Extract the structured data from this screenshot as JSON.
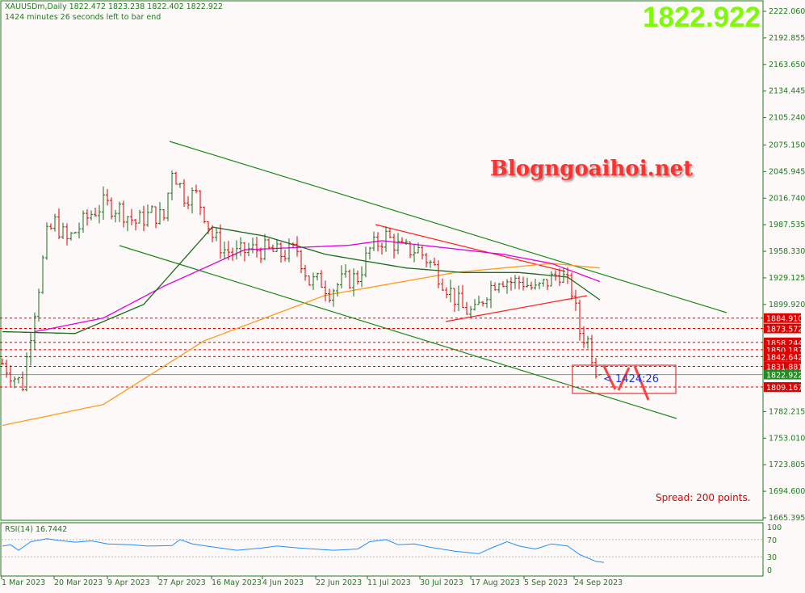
{
  "header": {
    "symbol_line": "XAUUSDm,Daily  1822.472 1823.238 1822.402 1822.922",
    "timer_line": "1424 minutes 26 seconds left to bar end"
  },
  "big_price": "1822.922",
  "watermark": "Blogngoaihoi.net",
  "spread": "Spread: 200 points.",
  "countdown": "< 1424:26",
  "colors": {
    "bull": "#1a6b1a",
    "bear": "#e00000",
    "ma_fast": "#1a6b1a",
    "ma_mid": "#e000e0",
    "ma_slow": "#ff9a1a",
    "channel": "#1a8a1a",
    "triangle": "#ff2020",
    "level": "#e00000",
    "rsi": "#1e90ff",
    "bid_label": "#228b22"
  },
  "chart_data": [
    {
      "type": "ohlc",
      "title": "XAUUSDm,Daily",
      "ylim": [
        1665.395,
        2222.06
      ],
      "y_ticks": [
        "2222.060",
        "2192.855",
        "2163.650",
        "2134.445",
        "2105.240",
        "2075.150",
        "2045.945",
        "2016.740",
        "1987.535",
        "1958.330",
        "1929.125",
        "1899.920",
        "1782.215",
        "1753.010",
        "1723.805",
        "1694.600",
        "1665.395"
      ],
      "x_ticks": [
        "1 Mar 2023",
        "20 Mar 2023",
        "9 Apr 2023",
        "27 Apr 2023",
        "16 May 2023",
        "4 Jun 2023",
        "22 Jun 2023",
        "11 Jul 2023",
        "30 Jul 2023",
        "17 Aug 2023",
        "5 Sep 2023",
        "24 Sep 2023"
      ],
      "last": {
        "open": 1822.472,
        "high": 1823.238,
        "low": 1822.402,
        "close": 1822.922
      },
      "close_path_bar_price": [
        [
          0,
          1835
        ],
        [
          3,
          1820
        ],
        [
          5,
          1812
        ],
        [
          7,
          1870
        ],
        [
          9,
          1920
        ],
        [
          11,
          1975
        ],
        [
          13,
          1990
        ],
        [
          16,
          1970
        ],
        [
          19,
          1985
        ],
        [
          22,
          2000
        ],
        [
          25,
          2010
        ],
        [
          29,
          2005
        ],
        [
          33,
          1990
        ],
        [
          37,
          2000
        ],
        [
          40,
          1995
        ],
        [
          42,
          2050
        ],
        [
          45,
          2020
        ],
        [
          48,
          2020
        ],
        [
          50,
          2000
        ],
        [
          52,
          1975
        ],
        [
          55,
          1960
        ],
        [
          58,
          1955
        ],
        [
          61,
          1960
        ],
        [
          65,
          1960
        ],
        [
          69,
          1955
        ],
        [
          73,
          1960
        ],
        [
          76,
          1925
        ],
        [
          79,
          1925
        ],
        [
          81,
          1915
        ],
        [
          84,
          1925
        ],
        [
          88,
          1930
        ],
        [
          91,
          1960
        ],
        [
          95,
          1975
        ],
        [
          99,
          1960
        ],
        [
          103,
          1960
        ],
        [
          107,
          1940
        ],
        [
          110,
          1920
        ],
        [
          114,
          1895
        ],
        [
          117,
          1890
        ],
        [
          120,
          1915
        ],
        [
          123,
          1930
        ],
        [
          126,
          1925
        ],
        [
          129,
          1925
        ],
        [
          132,
          1915
        ],
        [
          135,
          1925
        ],
        [
          138,
          1935
        ],
        [
          141,
          1915
        ],
        [
          143,
          1870
        ],
        [
          145,
          1860
        ],
        [
          147,
          1830
        ],
        [
          148,
          1822.922
        ]
      ],
      "ma_fast": [
        [
          0,
          1870
        ],
        [
          18,
          1868
        ],
        [
          35,
          1900
        ],
        [
          52,
          1985
        ],
        [
          65,
          1975
        ],
        [
          80,
          1955
        ],
        [
          100,
          1940
        ],
        [
          114,
          1935
        ],
        [
          128,
          1935
        ],
        [
          140,
          1930
        ],
        [
          148,
          1905
        ]
      ],
      "ma_mid": [
        [
          8,
          1870
        ],
        [
          25,
          1885
        ],
        [
          40,
          1920
        ],
        [
          60,
          1960
        ],
        [
          86,
          1965
        ],
        [
          94,
          1970
        ],
        [
          124,
          1955
        ],
        [
          136,
          1945
        ],
        [
          148,
          1925
        ]
      ],
      "ma_slow": [
        [
          0,
          1767
        ],
        [
          25,
          1790
        ],
        [
          50,
          1860
        ],
        [
          80,
          1910
        ],
        [
          112,
          1935
        ],
        [
          136,
          1945
        ],
        [
          148,
          1940
        ]
      ],
      "levels": [
        "1884.910",
        "1873.572",
        "1858.244",
        "1850.187",
        "1842.642",
        "1831.881",
        "1809.167"
      ],
      "bid": "1822.922"
    },
    {
      "type": "line",
      "title": "RSI(14) 16.7442",
      "ylim": [
        0,
        100
      ],
      "y_ticks": [
        "100",
        "70",
        "30",
        "0"
      ],
      "levels": [
        70,
        30
      ],
      "values_bar": [
        [
          0,
          55
        ],
        [
          2,
          58
        ],
        [
          4,
          45
        ],
        [
          7,
          65
        ],
        [
          11,
          72
        ],
        [
          14,
          68
        ],
        [
          18,
          64
        ],
        [
          22,
          67
        ],
        [
          26,
          60
        ],
        [
          32,
          58
        ],
        [
          36,
          55
        ],
        [
          42,
          56
        ],
        [
          44,
          70
        ],
        [
          47,
          60
        ],
        [
          52,
          53
        ],
        [
          58,
          45
        ],
        [
          64,
          50
        ],
        [
          68,
          55
        ],
        [
          74,
          50
        ],
        [
          82,
          45
        ],
        [
          88,
          48
        ],
        [
          91,
          65
        ],
        [
          95,
          70
        ],
        [
          98,
          58
        ],
        [
          102,
          60
        ],
        [
          106,
          52
        ],
        [
          112,
          43
        ],
        [
          118,
          37
        ],
        [
          121,
          50
        ],
        [
          125,
          65
        ],
        [
          128,
          55
        ],
        [
          132,
          48
        ],
        [
          136,
          60
        ],
        [
          140,
          55
        ],
        [
          143,
          35
        ],
        [
          147,
          19
        ],
        [
          149,
          16.7442
        ]
      ]
    }
  ]
}
